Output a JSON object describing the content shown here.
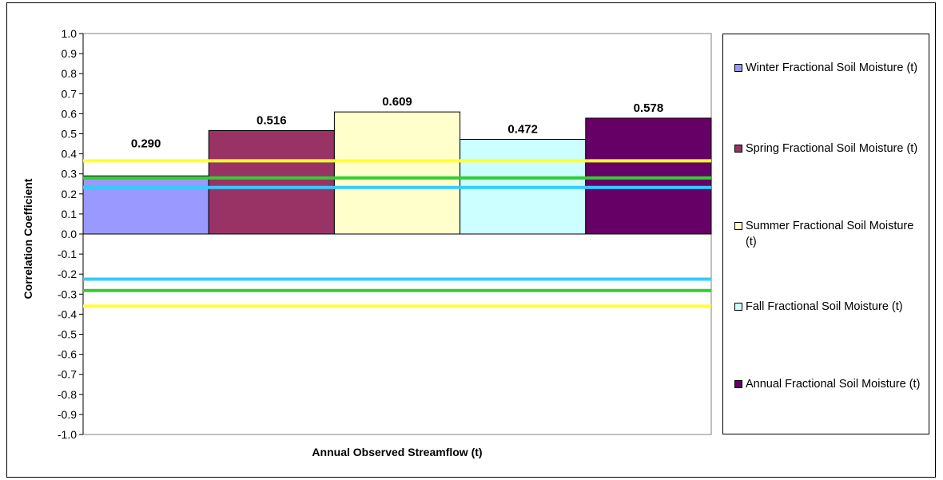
{
  "chart_data": {
    "type": "bar",
    "title": "",
    "xlabel": "Annual Observed Streamflow (t)",
    "ylabel": "Correlation Coefficient",
    "ylim": [
      -1.0,
      1.0
    ],
    "ytick_step": 0.1,
    "grid": false,
    "legend_position": "right",
    "series": [
      {
        "name": "Winter Fractional Soil Moisture (t)",
        "value": 0.29,
        "label": "0.290",
        "color": "#9999ff"
      },
      {
        "name": "Spring Fractional Soil Moisture (t)",
        "value": 0.516,
        "label": "0.516",
        "color": "#993366"
      },
      {
        "name": "Summer Fractional Soil Moisture (t)",
        "value": 0.609,
        "label": "0.609",
        "color": "#ffffcc"
      },
      {
        "name": "Fall Fractional Soil Moisture (t)",
        "value": 0.472,
        "label": "0.472",
        "color": "#ccffff"
      },
      {
        "name": "Annual Fractional Soil Moisture (t)",
        "value": 0.578,
        "label": "0.578",
        "color": "#660066"
      }
    ],
    "reference_lines": [
      {
        "value": 0.365,
        "color": "#ffff33"
      },
      {
        "value": 0.28,
        "color": "#33cc33"
      },
      {
        "value": 0.232,
        "color": "#33ccff"
      },
      {
        "value": -0.225,
        "color": "#33ccff"
      },
      {
        "value": -0.282,
        "color": "#33cc33"
      },
      {
        "value": -0.36,
        "color": "#ffff33"
      }
    ]
  }
}
